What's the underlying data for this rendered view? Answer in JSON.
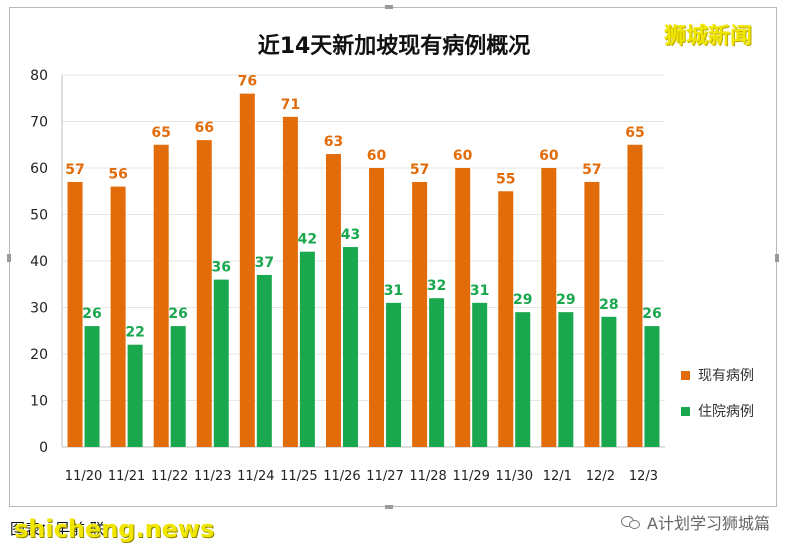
{
  "colors": {
    "series_current": "#e36c0a",
    "series_hospital": "#1aa84f",
    "grid": "#e6e6e6",
    "axis_text": "#222222"
  },
  "watermark_top": "狮城新闻",
  "watermark_bottom": "shicheng.news",
  "footer_text": "图表：早前·联",
  "account_label": "A计划学习狮城篇",
  "account_icon": "wechat-icon",
  "chart_data": {
    "type": "bar",
    "title": "近14天新加坡现有病例概况",
    "xlabel": "",
    "ylabel": "",
    "ylim": [
      0,
      80
    ],
    "yticks": [
      0,
      10,
      20,
      30,
      40,
      50,
      60,
      70,
      80
    ],
    "grid": true,
    "legend": "right",
    "categories": [
      "11/20",
      "11/21",
      "11/22",
      "11/23",
      "11/24",
      "11/25",
      "11/26",
      "11/27",
      "11/28",
      "11/29",
      "11/30",
      "12/1",
      "12/2",
      "12/3"
    ],
    "series": [
      {
        "name": "现有病例",
        "values": [
          57,
          56,
          65,
          66,
          76,
          71,
          63,
          60,
          57,
          60,
          55,
          60,
          57,
          65
        ]
      },
      {
        "name": "住院病例",
        "values": [
          26,
          22,
          26,
          36,
          37,
          42,
          43,
          31,
          32,
          31,
          29,
          29,
          28,
          26
        ]
      }
    ]
  }
}
